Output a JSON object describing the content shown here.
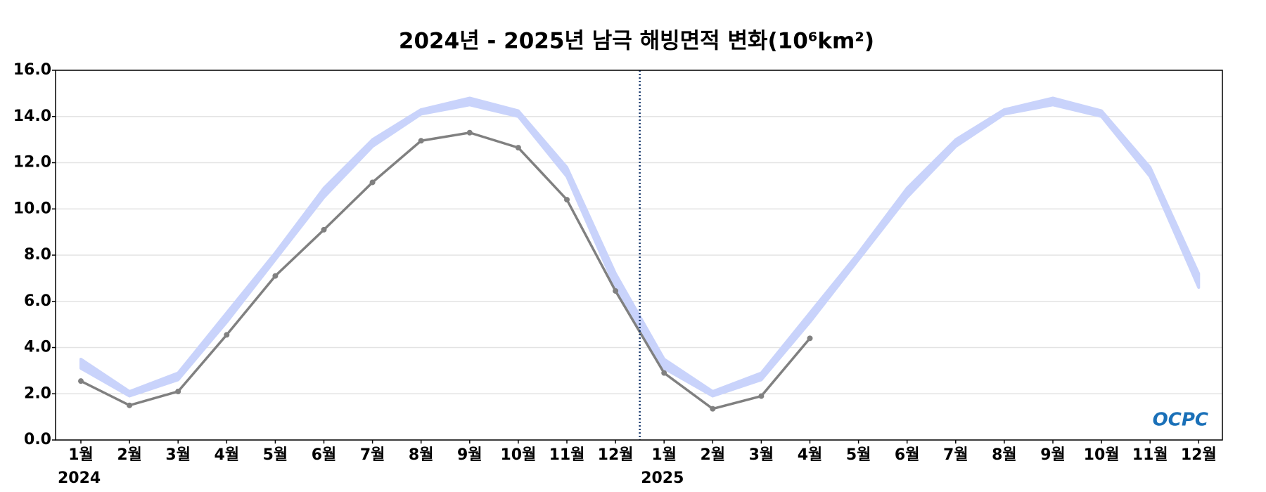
{
  "chart_data": {
    "type": "line",
    "title": "2024년 - 2025년 남극 해빙면적 변화(10⁶km²)",
    "categories": [
      "1월",
      "2월",
      "3월",
      "4월",
      "5월",
      "6월",
      "7월",
      "8월",
      "9월",
      "10월",
      "11월",
      "12월",
      "1월",
      "2월",
      "3월",
      "4월",
      "5월",
      "6월",
      "7월",
      "8월",
      "9월",
      "10월",
      "11월",
      "12월"
    ],
    "year_labels": [
      {
        "index": 0,
        "label": "2024"
      },
      {
        "index": 12,
        "label": "2025"
      }
    ],
    "series": [
      {
        "color": "#808080",
        "values": [
          2.55,
          1.5,
          2.1,
          4.55,
          7.1,
          9.1,
          11.15,
          12.95,
          13.3,
          12.65,
          10.4,
          6.45,
          2.9,
          1.35,
          1.9,
          4.4,
          null,
          null,
          null,
          null,
          null,
          null,
          null,
          null
        ]
      }
    ],
    "band": {
      "color": "#c9d3fb",
      "upper": [
        3.5,
        2.1,
        2.9,
        5.5,
        8.1,
        10.9,
        13.0,
        14.3,
        14.8,
        14.25,
        11.8,
        7.2,
        3.5,
        2.1,
        2.9,
        5.5,
        8.1,
        10.9,
        13.0,
        14.3,
        14.8,
        14.25,
        11.8,
        7.2
      ],
      "lower": [
        3.1,
        1.9,
        2.6,
        5.1,
        7.8,
        10.5,
        12.7,
        14.1,
        14.5,
        14.0,
        11.4,
        6.6,
        3.1,
        1.9,
        2.6,
        5.1,
        7.8,
        10.5,
        12.7,
        14.1,
        14.5,
        14.0,
        11.4,
        6.6
      ]
    },
    "ylim": [
      0,
      16
    ],
    "yticks": [
      {
        "value": 0,
        "label": "0.0"
      },
      {
        "value": 2,
        "label": "2.0"
      },
      {
        "value": 4,
        "label": "4.0"
      },
      {
        "value": 6,
        "label": "6.0"
      },
      {
        "value": 8,
        "label": "8.0"
      },
      {
        "value": 10,
        "label": "10.0"
      },
      {
        "value": 12,
        "label": "12.0"
      },
      {
        "value": 14,
        "label": "14.0"
      },
      {
        "value": 16,
        "label": "16.0"
      }
    ],
    "grid": true,
    "logo": "OCPC"
  }
}
